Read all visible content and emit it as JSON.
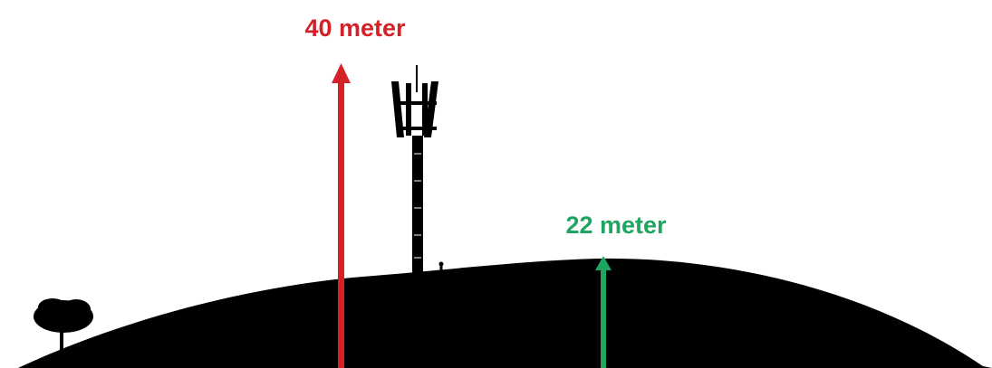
{
  "labels": [
    {
      "text": "40 meter"
    },
    {
      "text": "22 meter"
    }
  ]
}
